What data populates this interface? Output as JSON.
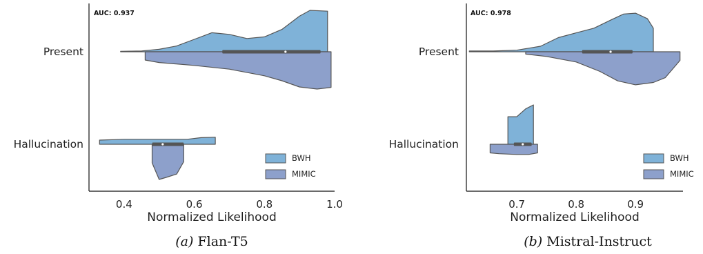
{
  "chart_data": [
    {
      "type": "violin",
      "caption_letter": "(a)",
      "caption_name": "Flan-T5",
      "annotation": "AUC: 0.937",
      "xlabel": "Normalized Likelihood",
      "xlim": [
        0.3,
        1.0
      ],
      "xticks": [
        0.4,
        0.6,
        0.8,
        1.0
      ],
      "xtick_labels": [
        "0.4",
        "0.6",
        "0.8",
        "1.0"
      ],
      "categories": [
        "Present",
        "Hallucination"
      ],
      "legend": {
        "placement": "lower-right",
        "entries": [
          "BWH",
          "MIMIC"
        ]
      },
      "series": [
        {
          "name": "BWH",
          "color": "#7fb2d8",
          "side": "upper",
          "violins": [
            {
              "category": "Present",
              "min": 0.39,
              "max": 0.98,
              "density": [
                [
                  0.39,
                  0.01
                ],
                [
                  0.45,
                  0.02
                ],
                [
                  0.5,
                  0.06
                ],
                [
                  0.55,
                  0.14
                ],
                [
                  0.6,
                  0.3
                ],
                [
                  0.65,
                  0.46
                ],
                [
                  0.7,
                  0.42
                ],
                [
                  0.75,
                  0.32
                ],
                [
                  0.8,
                  0.36
                ],
                [
                  0.85,
                  0.54
                ],
                [
                  0.9,
                  0.86
                ],
                [
                  0.93,
                  1.0
                ],
                [
                  0.98,
                  0.98
                ]
              ]
            },
            {
              "category": "Hallucination",
              "min": 0.33,
              "max": 0.66,
              "density": [
                [
                  0.33,
                  0.1
                ],
                [
                  0.4,
                  0.12
                ],
                [
                  0.5,
                  0.12
                ],
                [
                  0.58,
                  0.12
                ],
                [
                  0.62,
                  0.16
                ],
                [
                  0.66,
                  0.17
                ]
              ]
            }
          ]
        },
        {
          "name": "MIMIC",
          "color": "#8da0cb",
          "side": "lower",
          "violins": [
            {
              "category": "Present",
              "min": 0.46,
              "max": 0.99,
              "density": [
                [
                  0.46,
                  0.2
                ],
                [
                  0.5,
                  0.26
                ],
                [
                  0.6,
                  0.33
                ],
                [
                  0.7,
                  0.42
                ],
                [
                  0.8,
                  0.58
                ],
                [
                  0.85,
                  0.7
                ],
                [
                  0.9,
                  0.85
                ],
                [
                  0.95,
                  0.9
                ],
                [
                  0.99,
                  0.86
                ]
              ]
            },
            {
              "category": "Hallucination",
              "min": 0.48,
              "max": 0.57,
              "density": [
                [
                  0.48,
                  0.45
                ],
                [
                  0.5,
                  0.85
                ],
                [
                  0.52,
                  0.8
                ],
                [
                  0.55,
                  0.72
                ],
                [
                  0.57,
                  0.42
                ]
              ]
            }
          ]
        }
      ],
      "boxes": [
        {
          "category": "Present",
          "q1": 0.68,
          "median": 0.86,
          "q3": 0.96
        },
        {
          "category": "Hallucination",
          "q1": 0.48,
          "median": 0.51,
          "q3": 0.57
        }
      ]
    },
    {
      "type": "violin",
      "caption_letter": "(b)",
      "caption_name": "Mistral-Instruct",
      "annotation": "AUC: 0.978",
      "xlabel": "Normalized Likelihood",
      "xlim": [
        0.615,
        0.98
      ],
      "xticks": [
        0.7,
        0.8,
        0.9
      ],
      "xtick_labels": [
        "0.7",
        "0.8",
        "0.9"
      ],
      "categories": [
        "Present",
        "Hallucination"
      ],
      "legend": {
        "placement": "lower-right",
        "entries": [
          "BWH",
          "MIMIC"
        ]
      },
      "series": [
        {
          "name": "BWH",
          "color": "#7fb2d8",
          "side": "upper",
          "violins": [
            {
              "category": "Present",
              "min": 0.62,
              "max": 0.93,
              "density": [
                [
                  0.62,
                  0.02
                ],
                [
                  0.66,
                  0.02
                ],
                [
                  0.7,
                  0.04
                ],
                [
                  0.74,
                  0.14
                ],
                [
                  0.77,
                  0.36
                ],
                [
                  0.8,
                  0.48
                ],
                [
                  0.83,
                  0.6
                ],
                [
                  0.86,
                  0.82
                ],
                [
                  0.88,
                  0.96
                ],
                [
                  0.9,
                  0.98
                ],
                [
                  0.92,
                  0.84
                ],
                [
                  0.93,
                  0.6
                ]
              ]
            },
            {
              "category": "Hallucination",
              "min": 0.685,
              "max": 0.728,
              "density": [
                [
                  0.685,
                  0.7
                ],
                [
                  0.7,
                  0.7
                ],
                [
                  0.715,
                  0.9
                ],
                [
                  0.728,
                  1.0
                ]
              ]
            }
          ]
        },
        {
          "name": "MIMIC",
          "color": "#8da0cb",
          "side": "lower",
          "violins": [
            {
              "category": "Present",
              "min": 0.715,
              "max": 0.975,
              "density": [
                [
                  0.715,
                  0.06
                ],
                [
                  0.75,
                  0.12
                ],
                [
                  0.8,
                  0.26
                ],
                [
                  0.84,
                  0.5
                ],
                [
                  0.87,
                  0.74
                ],
                [
                  0.9,
                  0.84
                ],
                [
                  0.93,
                  0.78
                ],
                [
                  0.95,
                  0.66
                ],
                [
                  0.975,
                  0.22
                ]
              ]
            },
            {
              "category": "Hallucination",
              "min": 0.655,
              "max": 0.735,
              "density": [
                [
                  0.655,
                  0.22
                ],
                [
                  0.67,
                  0.24
                ],
                [
                  0.7,
                  0.26
                ],
                [
                  0.72,
                  0.26
                ],
                [
                  0.735,
                  0.22
                ]
              ]
            }
          ]
        }
      ],
      "boxes": [
        {
          "category": "Present",
          "q1": 0.81,
          "median": 0.858,
          "q3": 0.895
        },
        {
          "category": "Hallucination",
          "q1": 0.695,
          "median": 0.71,
          "q3": 0.725
        }
      ]
    }
  ]
}
